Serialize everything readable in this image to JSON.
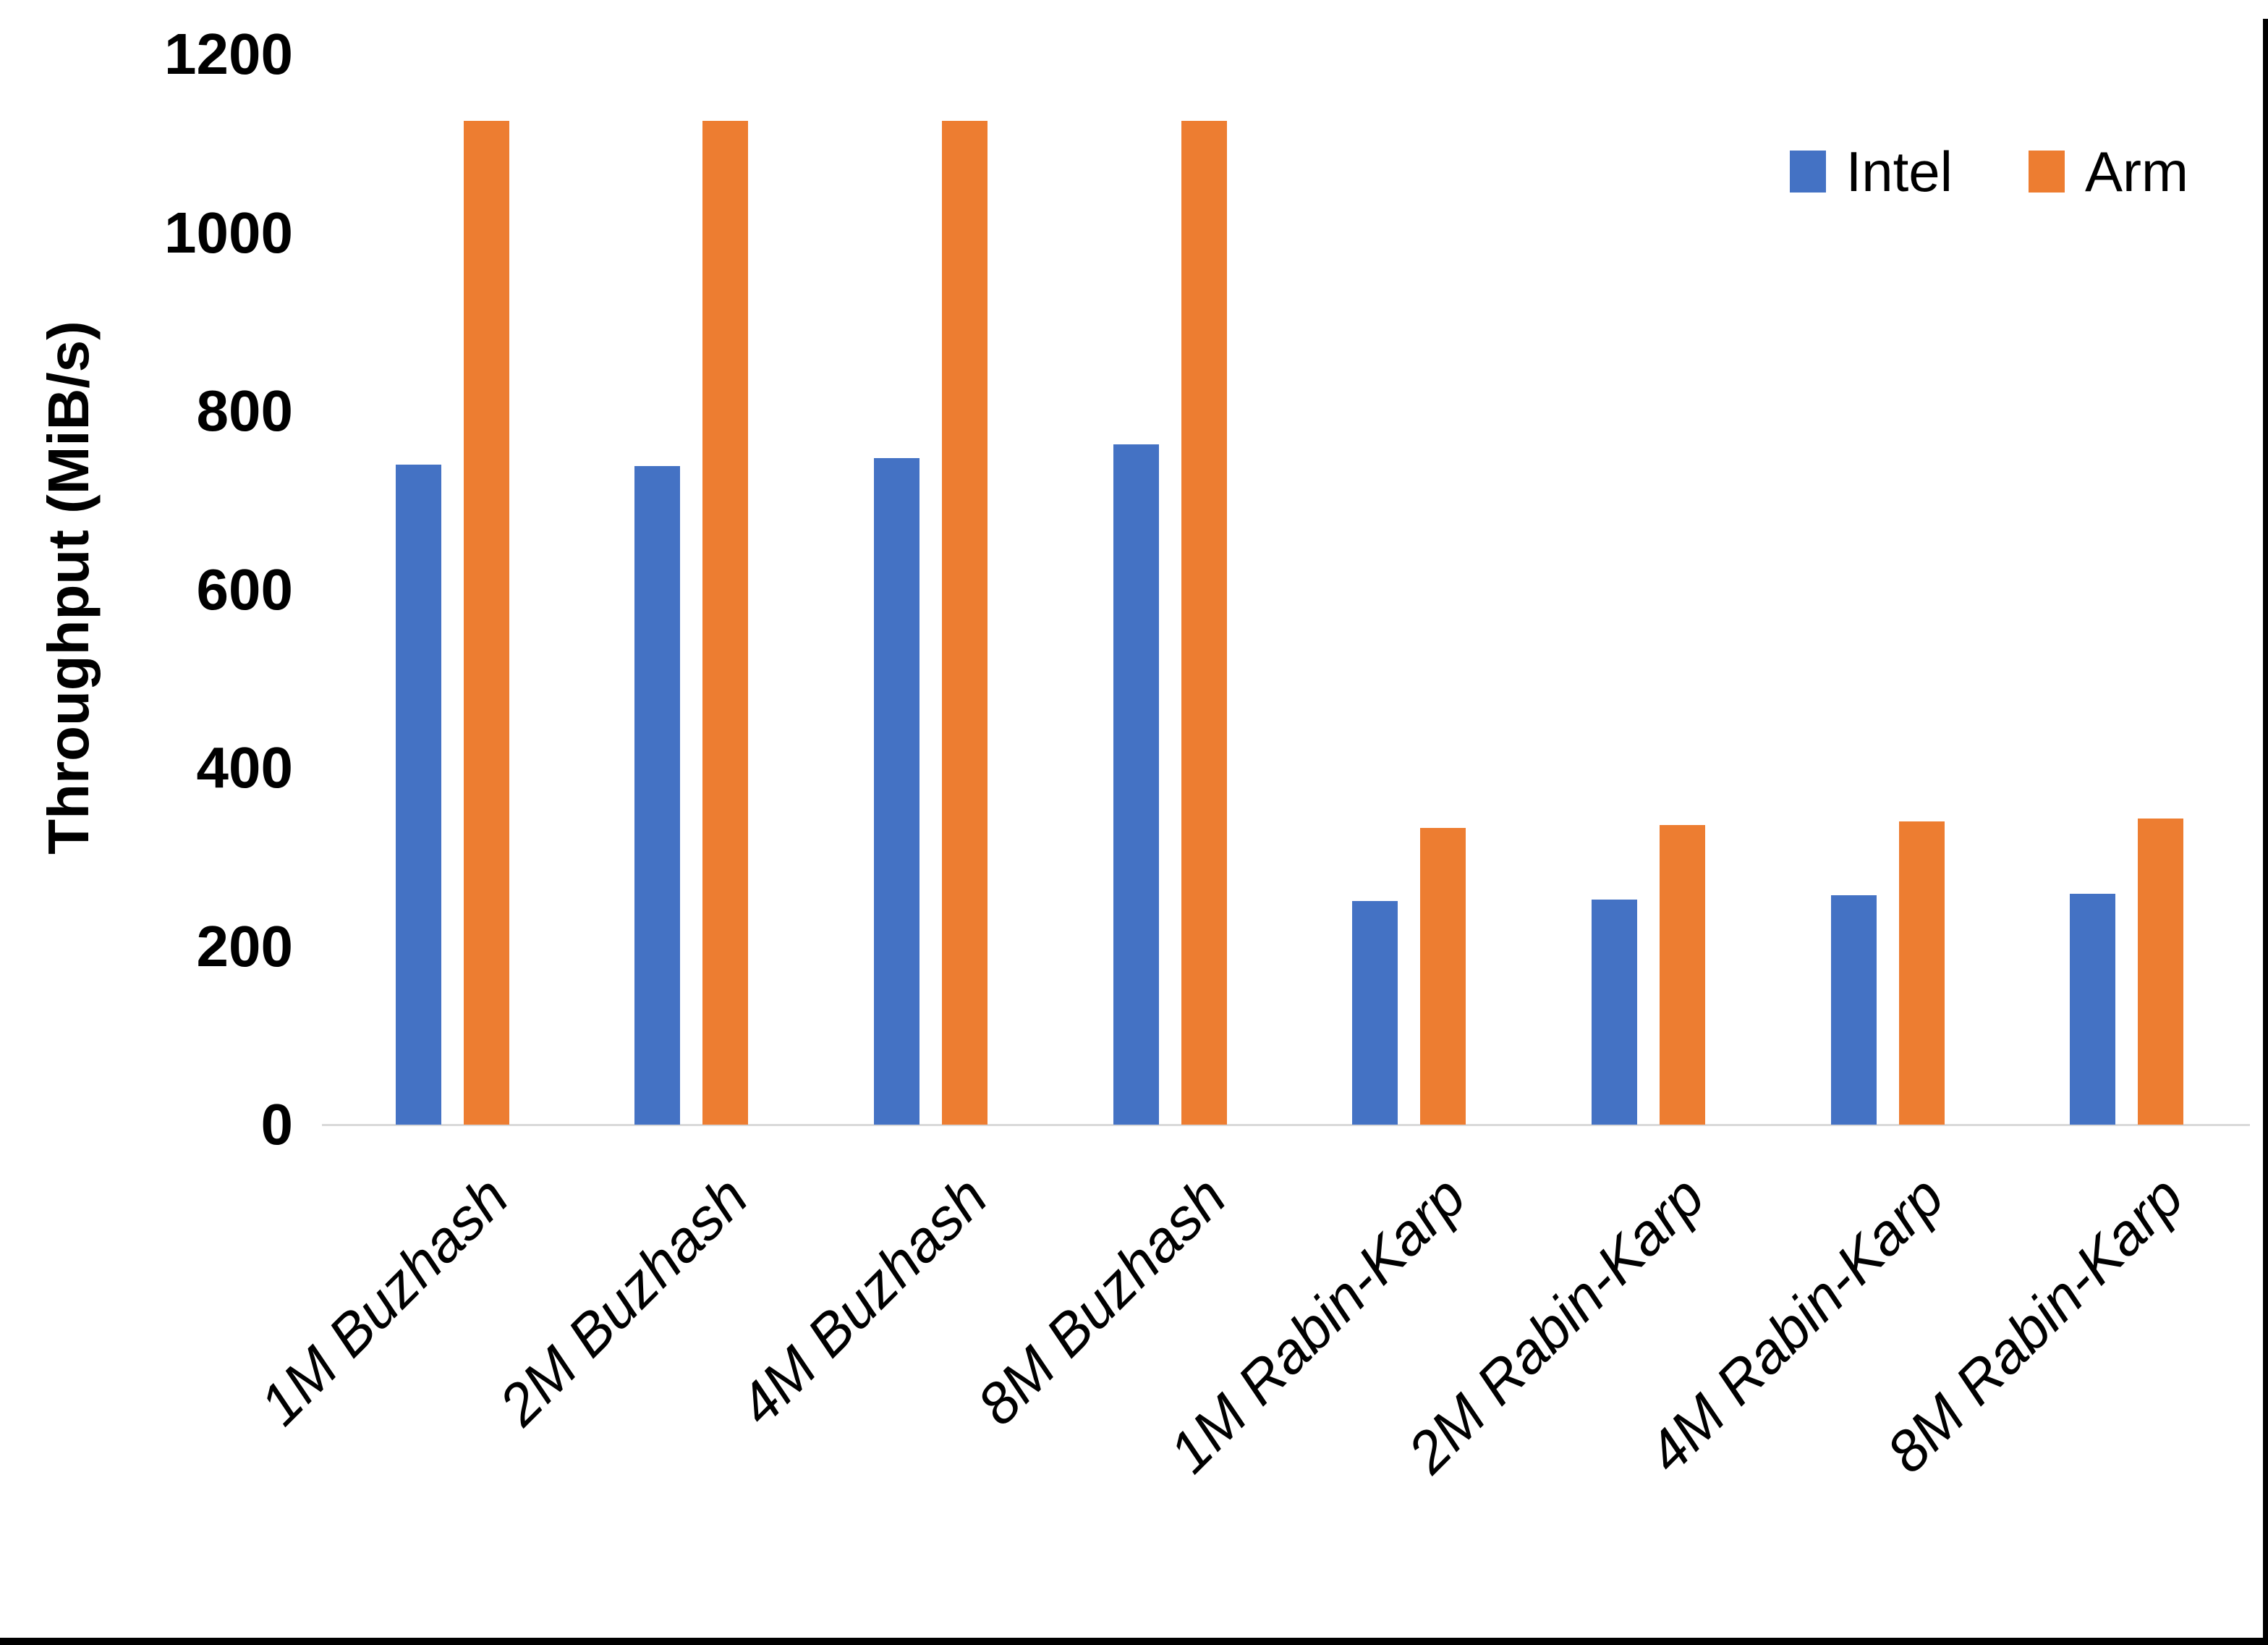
{
  "figure": {
    "background": "#ffffff",
    "border_color": "#000000",
    "axis_line_color": "#d9d9d9",
    "text_color": "#000000"
  },
  "chart_data": {
    "type": "bar",
    "title": "",
    "xlabel": "",
    "ylabel": "Throughput (MiB/s)",
    "ylim": [
      0,
      1200
    ],
    "y_ticks": [
      0,
      200,
      400,
      600,
      800,
      1000,
      1200
    ],
    "grid": false,
    "legend_position": "top-right",
    "categories": [
      "1M Buzhash",
      "2M Buzhash",
      "4M Buzhash",
      "8M Buzhash",
      "1M Rabin-Karp",
      "2M Rabin-Karp",
      "4M Rabin-Karp",
      "8M Rabin-Karp"
    ],
    "series": [
      {
        "name": "Intel",
        "color": "#4472C4",
        "values": [
          740,
          738,
          747,
          763,
          251,
          252,
          257,
          259
        ]
      },
      {
        "name": "Arm",
        "color": "#ED7D31",
        "values": [
          1125,
          1125,
          1125,
          1125,
          333,
          336,
          340,
          343
        ]
      }
    ]
  }
}
